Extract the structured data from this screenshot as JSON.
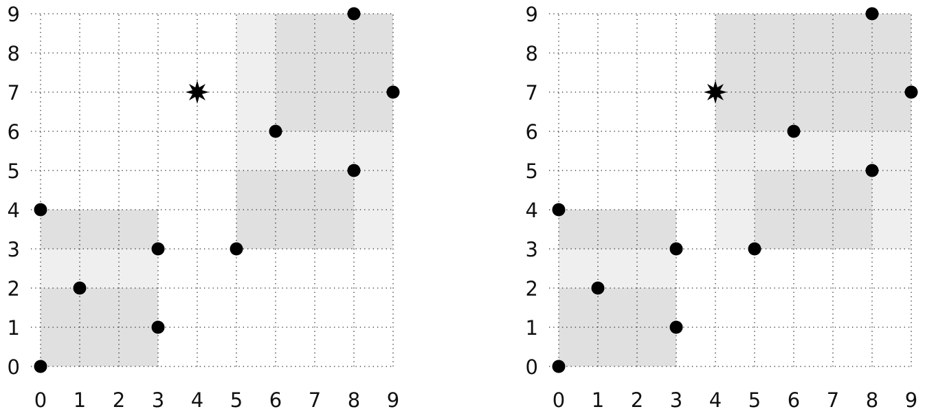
{
  "chart_data": [
    {
      "type": "scatter",
      "x_ticks": [
        "0",
        "1",
        "2",
        "3",
        "4",
        "5",
        "6",
        "7",
        "8",
        "9"
      ],
      "y_ticks": [
        "0",
        "1",
        "2",
        "3",
        "4",
        "5",
        "6",
        "7",
        "8",
        "9"
      ],
      "xlim": [
        0,
        9
      ],
      "ylim": [
        0,
        9
      ],
      "grid": true,
      "points": [
        {
          "x": 0,
          "y": 0
        },
        {
          "x": 0,
          "y": 4
        },
        {
          "x": 1,
          "y": 2
        },
        {
          "x": 3,
          "y": 1
        },
        {
          "x": 3,
          "y": 3
        },
        {
          "x": 5,
          "y": 3
        },
        {
          "x": 6,
          "y": 6
        },
        {
          "x": 8,
          "y": 5
        },
        {
          "x": 8,
          "y": 9
        },
        {
          "x": 9,
          "y": 7
        }
      ],
      "star": {
        "x": 4,
        "y": 7
      },
      "rectangles": [
        {
          "x0": 0,
          "y0": 0,
          "x1": 3,
          "y1": 4,
          "shade": "light"
        },
        {
          "x0": 0,
          "y0": 0,
          "x1": 3,
          "y1": 2,
          "shade": "dark"
        },
        {
          "x0": 0,
          "y0": 3,
          "x1": 3,
          "y1": 4,
          "shade": "dark"
        },
        {
          "x0": 5,
          "y0": 3,
          "x1": 9,
          "y1": 9,
          "shade": "light"
        },
        {
          "x0": 5,
          "y0": 3,
          "x1": 8,
          "y1": 5,
          "shade": "dark"
        },
        {
          "x0": 6,
          "y0": 6,
          "x1": 9,
          "y1": 9,
          "shade": "dark"
        }
      ]
    },
    {
      "type": "scatter",
      "x_ticks": [
        "0",
        "1",
        "2",
        "3",
        "4",
        "5",
        "6",
        "7",
        "8",
        "9"
      ],
      "y_ticks": [
        "0",
        "1",
        "2",
        "3",
        "4",
        "5",
        "6",
        "7",
        "8",
        "9"
      ],
      "xlim": [
        0,
        9
      ],
      "ylim": [
        0,
        9
      ],
      "grid": true,
      "points": [
        {
          "x": 0,
          "y": 0
        },
        {
          "x": 0,
          "y": 4
        },
        {
          "x": 1,
          "y": 2
        },
        {
          "x": 3,
          "y": 1
        },
        {
          "x": 3,
          "y": 3
        },
        {
          "x": 5,
          "y": 3
        },
        {
          "x": 6,
          "y": 6
        },
        {
          "x": 8,
          "y": 5
        },
        {
          "x": 8,
          "y": 9
        },
        {
          "x": 9,
          "y": 7
        }
      ],
      "star": {
        "x": 4,
        "y": 7
      },
      "rectangles": [
        {
          "x0": 0,
          "y0": 0,
          "x1": 3,
          "y1": 4,
          "shade": "light"
        },
        {
          "x0": 0,
          "y0": 0,
          "x1": 3,
          "y1": 2,
          "shade": "dark"
        },
        {
          "x0": 0,
          "y0": 3,
          "x1": 3,
          "y1": 4,
          "shade": "dark"
        },
        {
          "x0": 4,
          "y0": 3,
          "x1": 9,
          "y1": 9,
          "shade": "light"
        },
        {
          "x0": 5,
          "y0": 3,
          "x1": 8,
          "y1": 5,
          "shade": "dark"
        },
        {
          "x0": 4,
          "y0": 6,
          "x1": 9,
          "y1": 9,
          "shade": "dark"
        }
      ]
    }
  ],
  "colors": {
    "light_fill": "#efefef",
    "dark_fill": "#e0e0e0",
    "marker": "#000000",
    "grid": "#222222",
    "text": "#111111"
  }
}
